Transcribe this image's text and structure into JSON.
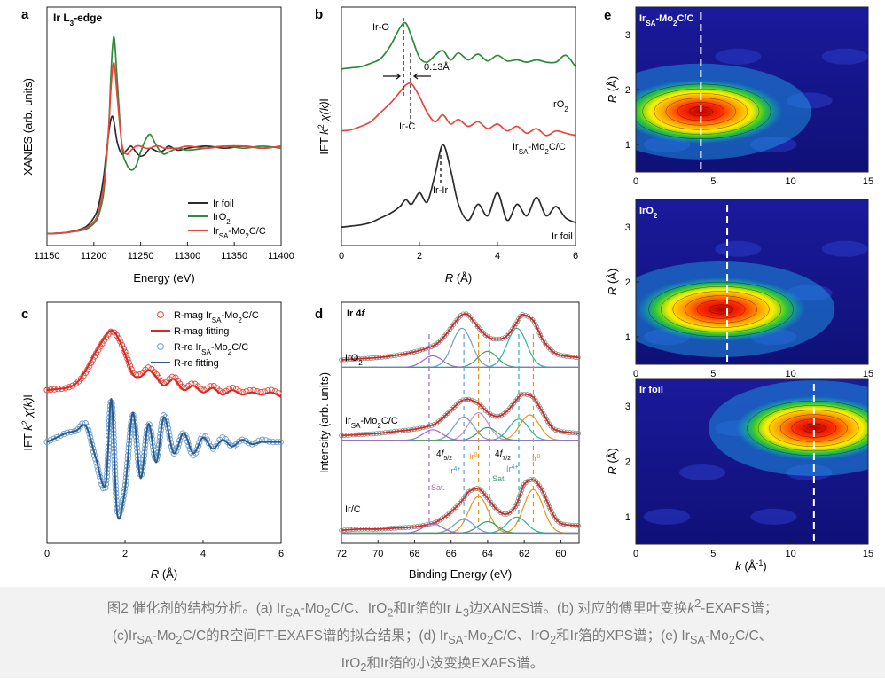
{
  "figure": {
    "panel_a": {
      "letter": "a",
      "label": "Ir L3-edge",
      "xlabel": "Energy (eV)",
      "ylabel": "XANES (arb. units)",
      "legend": [
        "Ir foil",
        "IrO2",
        "IrSA-Mo2C/C"
      ]
    },
    "panel_b": {
      "letter": "b",
      "xlabel": "R (Å)",
      "ylabel": "IFT k2 χ(k)",
      "annotations": [
        "Ir-O",
        "0.13Å",
        "Ir-C",
        "Ir-Ir"
      ],
      "curve_labels": [
        "IrO2",
        "IrSA-Mo2C/C",
        "Ir foil"
      ]
    },
    "panel_c": {
      "letter": "c",
      "xlabel": "R (Å)",
      "ylabel": "IFT k2 χ(k)",
      "legend": [
        "R-mag IrSA-Mo2C/C",
        "R-mag fitting",
        "R-re IrSA-Mo2C/C",
        "R-re fitting"
      ]
    },
    "panel_d": {
      "letter": "d",
      "label": "Ir 4f",
      "xlabel": "Binding Energy (eV)",
      "ylabel": "Intensity (arb. units)",
      "curve_labels": [
        "IrO2",
        "IrSA-Mo2C/C",
        "Ir/C"
      ],
      "peak_labels": [
        "4f5/2",
        "4f7/2",
        "Ir4+",
        "Ir0",
        "Irδ+",
        "Sat.",
        "Sat."
      ]
    },
    "panel_e": {
      "letter": "e",
      "xlabel": "k (Å-1)",
      "ylabel": "R (Å)",
      "subpanels": [
        "IrSA-Mo2C/C",
        "IrO2",
        "Ir foil"
      ]
    }
  },
  "caption": {
    "line1": "图2 催化剂的结构分析。(a) IrSA-Mo2C/C、IrO2和Ir箔的Ir L3边XANES谱。(b) 对应的傅里叶变换k2-EXAFS谱；",
    "line2": "(c)IrSA-Mo2C/C的R空间FT-EXAFS谱的拟合结果；(d) IrSA-Mo2C/C、IrO2和Ir箔的XPS谱；(e) IrSA-Mo2C/C、",
    "line3": "IrO2和Ir箔的小波变换EXAFS谱。"
  },
  "chart_data": [
    {
      "id": "a",
      "type": "line",
      "title": "Ir L3-edge",
      "xlabel": "Energy (eV)",
      "ylabel": "XANES (arb. units)",
      "xlim": [
        11150,
        11400
      ],
      "xticks": [
        11150,
        11200,
        11250,
        11300,
        11350,
        11400
      ],
      "x": [
        11150,
        11170,
        11190,
        11200,
        11205,
        11210,
        11213,
        11216,
        11218,
        11220,
        11222,
        11225,
        11230,
        11235,
        11240,
        11245,
        11250,
        11255,
        11260,
        11265,
        11270,
        11275,
        11280,
        11290,
        11300,
        11320,
        11340,
        11360,
        11380,
        11400
      ],
      "series": [
        {
          "name": "Ir foil",
          "color": "#2b2b2b",
          "values": [
            0.01,
            0.015,
            0.04,
            0.09,
            0.15,
            0.28,
            0.4,
            0.52,
            0.58,
            0.6,
            0.56,
            0.47,
            0.41,
            0.43,
            0.45,
            0.42,
            0.4,
            0.41,
            0.44,
            0.43,
            0.42,
            0.43,
            0.45,
            0.43,
            0.44,
            0.45,
            0.44,
            0.45,
            0.44,
            0.45
          ]
        },
        {
          "name": "IrO2",
          "color": "#2e8b3a",
          "values": [
            0.01,
            0.015,
            0.03,
            0.06,
            0.1,
            0.2,
            0.35,
            0.55,
            0.78,
            0.95,
            0.99,
            0.78,
            0.45,
            0.36,
            0.33,
            0.35,
            0.42,
            0.48,
            0.51,
            0.47,
            0.43,
            0.41,
            0.42,
            0.44,
            0.43,
            0.44,
            0.45,
            0.44,
            0.45,
            0.44
          ]
        },
        {
          "name": "IrSA-Mo2C/C",
          "color": "#e8453c",
          "values": [
            0.01,
            0.015,
            0.035,
            0.07,
            0.12,
            0.23,
            0.37,
            0.55,
            0.72,
            0.84,
            0.86,
            0.7,
            0.46,
            0.41,
            0.43,
            0.45,
            0.45,
            0.44,
            0.44,
            0.45,
            0.45,
            0.44,
            0.44,
            0.44,
            0.45,
            0.44,
            0.45,
            0.45,
            0.44,
            0.45
          ]
        }
      ]
    },
    {
      "id": "b",
      "type": "line",
      "xlabel": "R (Å)",
      "ylabel": "IFT k2 χ(k)",
      "xlim": [
        0,
        6
      ],
      "xticks": [
        0,
        2,
        4,
        6
      ],
      "x": [
        0,
        0.25,
        0.5,
        0.75,
        1.0,
        1.25,
        1.5,
        1.65,
        1.8,
        2.0,
        2.2,
        2.4,
        2.6,
        2.8,
        3.0,
        3.25,
        3.5,
        3.75,
        4.0,
        4.25,
        4.5,
        4.75,
        5.0,
        5.25,
        5.5,
        5.75,
        6.0
      ],
      "series": [
        {
          "name": "IrO2",
          "color": "#2e8b3a",
          "values": [
            6.9,
            6.95,
            7.0,
            7.15,
            7.35,
            7.9,
            8.7,
            8.9,
            8.3,
            7.4,
            7.2,
            7.5,
            7.7,
            7.3,
            7.6,
            7.3,
            7.55,
            7.25,
            7.5,
            7.25,
            7.3,
            7.2,
            7.3,
            7.2,
            7.2,
            7.5,
            7.0
          ]
        },
        {
          "name": "IrSA-Mo2C/C",
          "color": "#e8453c",
          "values": [
            4.2,
            4.25,
            4.4,
            4.6,
            5.0,
            5.4,
            5.9,
            6.2,
            6.25,
            5.7,
            5.0,
            4.6,
            4.9,
            4.5,
            4.7,
            4.4,
            4.6,
            4.3,
            4.5,
            4.2,
            4.4,
            4.1,
            4.3,
            4.0,
            4.2,
            4.1,
            4.0
          ]
        },
        {
          "name": "Ir foil",
          "color": "#2b2b2b",
          "values": [
            0.0,
            0.05,
            0.1,
            0.2,
            0.4,
            0.6,
            0.9,
            1.2,
            1.0,
            1.5,
            1.1,
            2.3,
            3.6,
            2.5,
            1.0,
            0.3,
            1.0,
            0.5,
            1.5,
            0.3,
            1.0,
            0.5,
            1.3,
            0.5,
            0.9,
            0.4,
            0.2
          ]
        }
      ]
    },
    {
      "id": "c",
      "type": "line",
      "xlabel": "R (Å)",
      "ylabel": "IFT k2 χ(k)",
      "xlim": [
        0,
        6
      ],
      "xticks": [
        0,
        2,
        4,
        6
      ],
      "x": [
        0,
        0.25,
        0.5,
        0.75,
        1.0,
        1.25,
        1.5,
        1.65,
        1.8,
        2.0,
        2.2,
        2.4,
        2.6,
        2.8,
        3.0,
        3.25,
        3.5,
        3.75,
        4.0,
        4.25,
        4.5,
        4.75,
        5.0,
        5.25,
        5.5,
        5.75,
        6.0
      ],
      "series": [
        {
          "name": "R-mag IrSA-Mo2C/C",
          "color": "#e8453c",
          "values": [
            2.3,
            2.35,
            2.4,
            2.6,
            3.1,
            3.9,
            4.6,
            4.9,
            4.7,
            4.0,
            3.1,
            3.0,
            3.3,
            3.0,
            2.6,
            2.9,
            2.4,
            2.6,
            2.3,
            2.5,
            2.2,
            2.4,
            2.2,
            2.3,
            2.2,
            2.3,
            2.1
          ]
        },
        {
          "name": "R-mag fitting",
          "color": "#d42a24",
          "values": [
            2.3,
            2.35,
            2.4,
            2.6,
            3.2,
            4.0,
            4.7,
            4.95,
            4.7,
            3.9,
            3.0,
            2.9,
            3.2,
            2.9,
            2.5,
            2.8,
            2.3,
            2.5,
            2.2,
            2.4,
            2.1,
            2.3,
            2.1,
            2.2,
            2.1,
            2.2,
            2.0
          ]
        },
        {
          "name": "R-re IrSA-Mo2C/C",
          "color": "#6a9fd0",
          "values": [
            0,
            0.2,
            0.4,
            0.5,
            0.8,
            -0.8,
            -2.0,
            1.8,
            -3.0,
            -2.0,
            1.2,
            -1.5,
            0.8,
            -0.8,
            1.2,
            -0.5,
            0.4,
            -0.6,
            0.3,
            -0.3,
            0.2,
            -0.2,
            0.1,
            -0.1,
            0.1,
            0.0,
            0.0
          ]
        },
        {
          "name": "R-re fitting",
          "color": "#2c5a8c",
          "values": [
            0,
            0.2,
            0.4,
            0.5,
            0.7,
            -0.7,
            -1.9,
            1.9,
            -3.2,
            -2.1,
            1.3,
            -1.6,
            0.8,
            -0.9,
            1.1,
            -0.5,
            0.4,
            -0.5,
            0.2,
            -0.3,
            0.1,
            -0.2,
            0.1,
            -0.1,
            0.0,
            0.0,
            0.0
          ]
        }
      ]
    },
    {
      "id": "d",
      "type": "line",
      "xlabel": "Binding Energy (eV)",
      "ylabel": "Intensity (arb. units)",
      "xlim": [
        72,
        59
      ],
      "xticks": [
        72,
        70,
        68,
        66,
        64,
        62,
        60
      ],
      "x": [
        72,
        71,
        70,
        69,
        68,
        67,
        66.5,
        66,
        65.5,
        65.2,
        65,
        64.5,
        64,
        63.5,
        63,
        62.5,
        62.2,
        62,
        61.5,
        61,
        60.5,
        60,
        59
      ],
      "series": [
        {
          "name": "IrO2",
          "color": "#555555",
          "values": [
            0.5,
            0.55,
            0.6,
            0.7,
            0.85,
            1.1,
            1.4,
            1.9,
            2.4,
            2.5,
            2.4,
            1.9,
            1.5,
            1.4,
            1.5,
            2.0,
            2.4,
            2.45,
            2.2,
            1.4,
            0.9,
            0.7,
            0.6
          ]
        },
        {
          "name": "IrSA-Mo2C/C",
          "color": "#555555",
          "values": [
            0.4,
            0.45,
            0.5,
            0.6,
            0.7,
            0.9,
            1.2,
            1.6,
            2.0,
            2.1,
            2.1,
            1.9,
            1.5,
            1.3,
            1.5,
            2.0,
            2.3,
            2.35,
            2.2,
            1.5,
            0.8,
            0.6,
            0.5
          ]
        },
        {
          "name": "Ir/C",
          "color": "#555555",
          "values": [
            0.3,
            0.35,
            0.35,
            0.4,
            0.45,
            0.6,
            0.8,
            1.1,
            1.5,
            1.8,
            2.0,
            2.1,
            1.7,
            1.2,
            1.0,
            1.3,
            1.9,
            2.3,
            2.5,
            2.0,
            1.1,
            0.6,
            0.5
          ]
        }
      ]
    },
    {
      "id": "e",
      "type": "heatmap",
      "xlabel": "k (Å-1)",
      "ylabel": "R (Å)",
      "xlim": [
        0,
        15
      ],
      "ylim": [
        0.5,
        3.5
      ],
      "xticks": [
        0,
        5,
        10,
        15
      ],
      "yticks": [
        1,
        2,
        3
      ],
      "maps": [
        {
          "name": "IrSA-Mo2C/C",
          "center_k": 4.2,
          "center_R": 1.6,
          "dashed_k": 4.2
        },
        {
          "name": "IrO2",
          "center_k": 5.5,
          "center_R": 1.5,
          "dashed_k": 5.9
        },
        {
          "name": "Ir foil",
          "center_k": 11.5,
          "center_R": 2.6,
          "dashed_k": 11.5
        }
      ]
    }
  ]
}
